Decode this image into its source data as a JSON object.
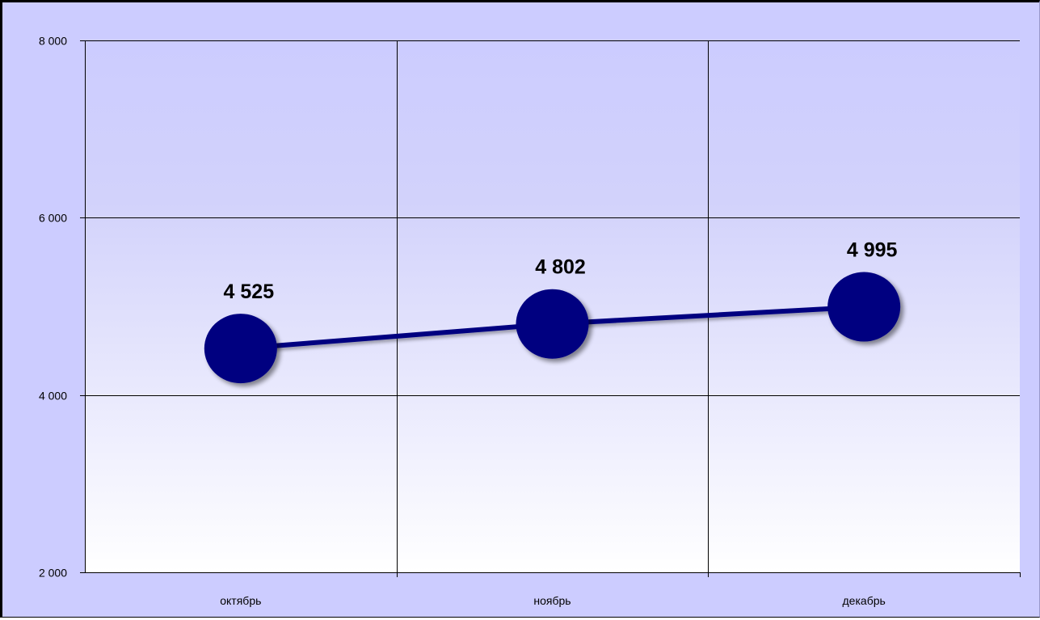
{
  "chart_data": {
    "type": "line",
    "categories": [
      "октябрь",
      "ноябрь",
      "декабрь"
    ],
    "series": [
      {
        "values": [
          4525,
          4802,
          4995
        ],
        "data_labels": [
          "4 525",
          "4 802",
          "4 995"
        ],
        "color": "#000080"
      }
    ],
    "ylim": [
      2000,
      8000
    ],
    "y_ticks": [
      2000,
      4000,
      6000,
      8000
    ],
    "y_tick_labels": [
      "2 000",
      "4 000",
      "6 000",
      "8 000"
    ],
    "grid": true,
    "marker": "circle",
    "title": "",
    "xlabel": "",
    "ylabel": "",
    "colors": {
      "chart_area": "#ccccff",
      "plot_top": "#ccccff",
      "plot_bottom": "#ffffff",
      "gridlines": "#000000",
      "series": "#000080"
    }
  }
}
